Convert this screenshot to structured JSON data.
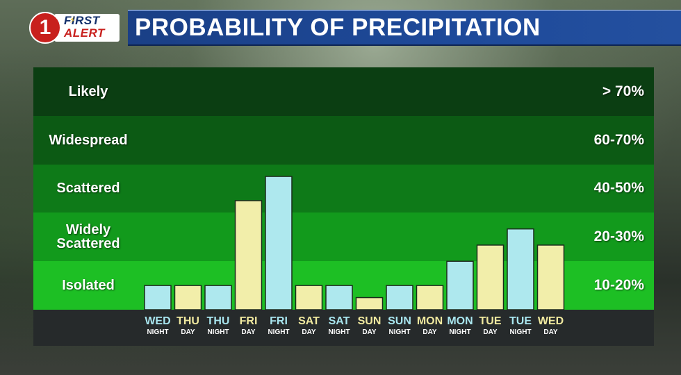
{
  "logo": {
    "number": "1",
    "first": "FIRST",
    "alert": "ALERT"
  },
  "title": "PROBABILITY OF PRECIPITATION",
  "colors": {
    "band_colors": [
      "#0b3e12",
      "#0c5a14",
      "#0e7a18",
      "#129a1c",
      "#1dbf24"
    ],
    "night_bar": "#aee8ee",
    "day_bar": "#f2eeaa",
    "night_label": "#a9e6ef",
    "day_label": "#f0e99f"
  },
  "chart_data": {
    "type": "bar",
    "title": "PROBABILITY OF PRECIPITATION",
    "y_unit": "%",
    "ylim": [
      0,
      100
    ],
    "bands": [
      {
        "label": "Likely",
        "range": "> 70%"
      },
      {
        "label": "Widespread",
        "range": "60-70%"
      },
      {
        "label": "Scattered",
        "range": "40-50%"
      },
      {
        "label": "Widely Scattered",
        "range": "20-30%"
      },
      {
        "label": "Isolated",
        "range": "10-20%"
      }
    ],
    "categories": [
      {
        "day": "WED",
        "period": "NIGHT"
      },
      {
        "day": "THU",
        "period": "DAY"
      },
      {
        "day": "THU",
        "period": "NIGHT"
      },
      {
        "day": "FRI",
        "period": "DAY"
      },
      {
        "day": "FRI",
        "period": "NIGHT"
      },
      {
        "day": "SAT",
        "period": "DAY"
      },
      {
        "day": "SAT",
        "period": "NIGHT"
      },
      {
        "day": "SUN",
        "period": "DAY"
      },
      {
        "day": "SUN",
        "period": "NIGHT"
      },
      {
        "day": "MON",
        "period": "DAY"
      },
      {
        "day": "MON",
        "period": "NIGHT"
      },
      {
        "day": "TUE",
        "period": "DAY"
      },
      {
        "day": "TUE",
        "period": "NIGHT"
      },
      {
        "day": "WED",
        "period": "DAY"
      }
    ],
    "values": [
      10,
      10,
      10,
      40,
      50,
      10,
      10,
      5,
      10,
      10,
      20,
      25,
      30,
      25
    ],
    "legend": "none",
    "grid": false
  }
}
